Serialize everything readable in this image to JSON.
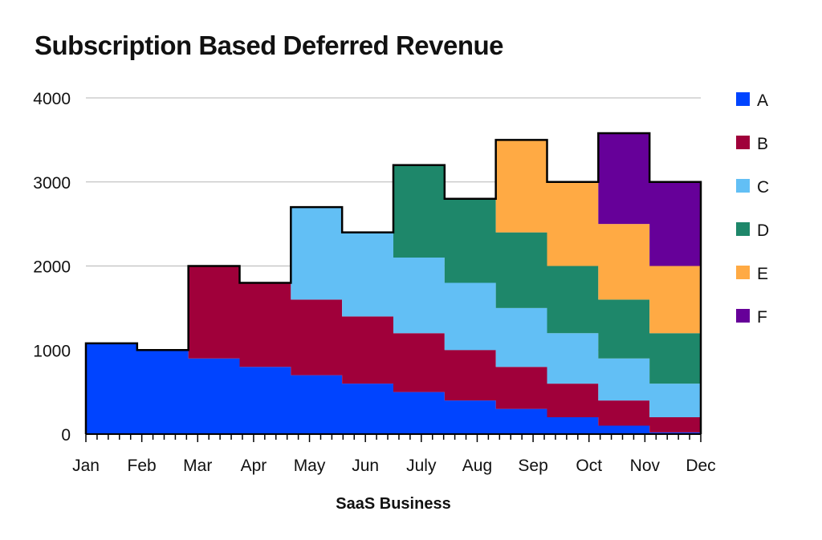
{
  "chart_data": {
    "type": "area",
    "subtype": "stacked-step",
    "title": "Subscription Based Deferred Revenue",
    "xlabel": "SaaS Business",
    "ylabel": "",
    "ylim": [
      0,
      4000
    ],
    "yticks": [
      0,
      1000,
      2000,
      3000,
      4000
    ],
    "grid": true,
    "legend_position": "right",
    "categories": [
      "Jan",
      "Feb",
      "Mar",
      "Apr",
      "May",
      "Jun",
      "July",
      "Aug",
      "Sep",
      "Oct",
      "Nov",
      "Dec"
    ],
    "series": [
      {
        "name": "A",
        "color": "#0044ff",
        "values": [
          1080,
          1000,
          900,
          800,
          700,
          600,
          500,
          400,
          300,
          200,
          100,
          20
        ]
      },
      {
        "name": "B",
        "color": "#a0003a",
        "values": [
          0,
          0,
          1100,
          1000,
          900,
          800,
          700,
          600,
          500,
          400,
          300,
          180
        ]
      },
      {
        "name": "C",
        "color": "#62bff5",
        "values": [
          0,
          0,
          0,
          0,
          1100,
          1000,
          900,
          800,
          700,
          600,
          500,
          400
        ]
      },
      {
        "name": "D",
        "color": "#1e876a",
        "values": [
          0,
          0,
          0,
          0,
          0,
          0,
          1100,
          1000,
          900,
          800,
          700,
          600
        ]
      },
      {
        "name": "E",
        "color": "#ffaa44",
        "values": [
          0,
          0,
          0,
          0,
          0,
          0,
          0,
          0,
          1100,
          1000,
          900,
          800
        ]
      },
      {
        "name": "F",
        "color": "#660099",
        "values": [
          0,
          0,
          0,
          0,
          0,
          0,
          0,
          0,
          0,
          0,
          1080,
          1000
        ]
      }
    ]
  }
}
